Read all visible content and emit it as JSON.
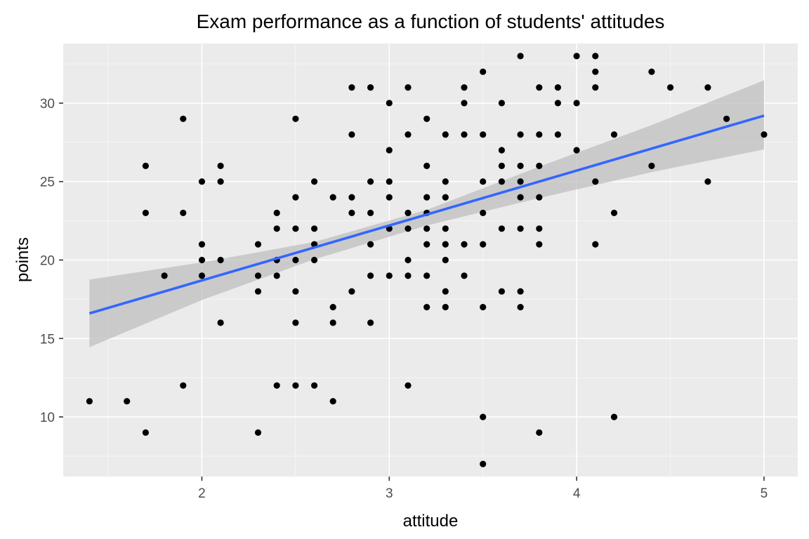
{
  "chart_data": {
    "type": "scatter",
    "title": "Exam performance as a function of students' attitudes",
    "xlabel": "attitude",
    "ylabel": "points",
    "xlim": [
      1.26,
      5.18
    ],
    "ylim": [
      6.2,
      33.8
    ],
    "x_ticks": [
      2,
      3,
      4,
      5
    ],
    "y_ticks": [
      10,
      15,
      20,
      25,
      30
    ],
    "x_tick_labels": [
      "2",
      "3",
      "4",
      "5"
    ],
    "y_tick_labels": [
      "10",
      "15",
      "20",
      "25",
      "30"
    ],
    "grid": true,
    "colors": {
      "panel_background": "#ebebeb",
      "grid_major": "#ffffff",
      "point": "#000000",
      "fit_line": "#3366ff",
      "confidence_band": "#bfbfbf"
    },
    "points": [
      [
        1.4,
        11
      ],
      [
        1.6,
        11
      ],
      [
        1.7,
        26
      ],
      [
        1.7,
        23
      ],
      [
        1.7,
        9
      ],
      [
        1.8,
        19
      ],
      [
        1.9,
        29
      ],
      [
        1.9,
        23
      ],
      [
        1.9,
        12
      ],
      [
        2.0,
        25
      ],
      [
        2.0,
        21
      ],
      [
        2.0,
        20
      ],
      [
        2.0,
        19
      ],
      [
        2.1,
        26
      ],
      [
        2.1,
        25
      ],
      [
        2.1,
        20
      ],
      [
        2.1,
        16
      ],
      [
        2.3,
        21
      ],
      [
        2.3,
        19
      ],
      [
        2.3,
        18
      ],
      [
        2.3,
        9
      ],
      [
        2.4,
        23
      ],
      [
        2.4,
        22
      ],
      [
        2.4,
        20
      ],
      [
        2.4,
        19
      ],
      [
        2.4,
        12
      ],
      [
        2.5,
        29
      ],
      [
        2.5,
        24
      ],
      [
        2.5,
        22
      ],
      [
        2.5,
        20
      ],
      [
        2.5,
        18
      ],
      [
        2.5,
        16
      ],
      [
        2.5,
        12
      ],
      [
        2.6,
        25
      ],
      [
        2.6,
        22
      ],
      [
        2.6,
        21
      ],
      [
        2.6,
        20
      ],
      [
        2.6,
        12
      ],
      [
        2.7,
        24
      ],
      [
        2.7,
        17
      ],
      [
        2.7,
        16
      ],
      [
        2.7,
        11
      ],
      [
        2.8,
        31
      ],
      [
        2.8,
        28
      ],
      [
        2.8,
        24
      ],
      [
        2.8,
        23
      ],
      [
        2.8,
        18
      ],
      [
        2.9,
        31
      ],
      [
        2.9,
        25
      ],
      [
        2.9,
        23
      ],
      [
        2.9,
        21
      ],
      [
        2.9,
        19
      ],
      [
        2.9,
        16
      ],
      [
        3.0,
        30
      ],
      [
        3.0,
        27
      ],
      [
        3.0,
        25
      ],
      [
        3.0,
        24
      ],
      [
        3.0,
        22
      ],
      [
        3.0,
        19
      ],
      [
        3.1,
        31
      ],
      [
        3.1,
        28
      ],
      [
        3.1,
        23
      ],
      [
        3.1,
        22
      ],
      [
        3.1,
        20
      ],
      [
        3.1,
        19
      ],
      [
        3.1,
        12
      ],
      [
        3.2,
        29
      ],
      [
        3.2,
        26
      ],
      [
        3.2,
        24
      ],
      [
        3.2,
        23
      ],
      [
        3.2,
        22
      ],
      [
        3.2,
        21
      ],
      [
        3.2,
        19
      ],
      [
        3.2,
        17
      ],
      [
        3.3,
        28
      ],
      [
        3.3,
        25
      ],
      [
        3.3,
        24
      ],
      [
        3.3,
        22
      ],
      [
        3.3,
        21
      ],
      [
        3.3,
        20
      ],
      [
        3.3,
        18
      ],
      [
        3.3,
        17
      ],
      [
        3.4,
        31
      ],
      [
        3.4,
        30
      ],
      [
        3.4,
        28
      ],
      [
        3.4,
        21
      ],
      [
        3.4,
        19
      ],
      [
        3.5,
        32
      ],
      [
        3.5,
        28
      ],
      [
        3.5,
        25
      ],
      [
        3.5,
        23
      ],
      [
        3.5,
        21
      ],
      [
        3.5,
        17
      ],
      [
        3.5,
        10
      ],
      [
        3.5,
        7
      ],
      [
        3.6,
        30
      ],
      [
        3.6,
        27
      ],
      [
        3.6,
        26
      ],
      [
        3.6,
        25
      ],
      [
        3.6,
        22
      ],
      [
        3.6,
        18
      ],
      [
        3.7,
        33
      ],
      [
        3.7,
        28
      ],
      [
        3.7,
        26
      ],
      [
        3.7,
        25
      ],
      [
        3.7,
        24
      ],
      [
        3.7,
        22
      ],
      [
        3.7,
        18
      ],
      [
        3.7,
        17
      ],
      [
        3.8,
        31
      ],
      [
        3.8,
        28
      ],
      [
        3.8,
        26
      ],
      [
        3.8,
        24
      ],
      [
        3.8,
        22
      ],
      [
        3.8,
        21
      ],
      [
        3.8,
        9
      ],
      [
        3.9,
        31
      ],
      [
        3.9,
        30
      ],
      [
        3.9,
        28
      ],
      [
        4.0,
        33
      ],
      [
        4.0,
        30
      ],
      [
        4.0,
        27
      ],
      [
        4.1,
        33
      ],
      [
        4.1,
        32
      ],
      [
        4.1,
        31
      ],
      [
        4.1,
        25
      ],
      [
        4.1,
        21
      ],
      [
        4.2,
        28
      ],
      [
        4.2,
        23
      ],
      [
        4.2,
        10
      ],
      [
        4.4,
        32
      ],
      [
        4.4,
        26
      ],
      [
        4.5,
        31
      ],
      [
        4.7,
        31
      ],
      [
        4.7,
        25
      ],
      [
        4.8,
        29
      ],
      [
        5.0,
        28
      ]
    ],
    "fit_line": {
      "x": [
        1.4,
        5.0
      ],
      "y": [
        16.6,
        29.2
      ]
    },
    "confidence_band": {
      "x": [
        1.4,
        2.0,
        2.6,
        3.2,
        3.8,
        4.4,
        5.0
      ],
      "lower": [
        14.45,
        17.45,
        20.05,
        22.2,
        23.95,
        25.6,
        27.05
      ],
      "upper": [
        18.75,
        19.85,
        21.15,
        23.2,
        25.95,
        28.6,
        31.45
      ]
    }
  }
}
